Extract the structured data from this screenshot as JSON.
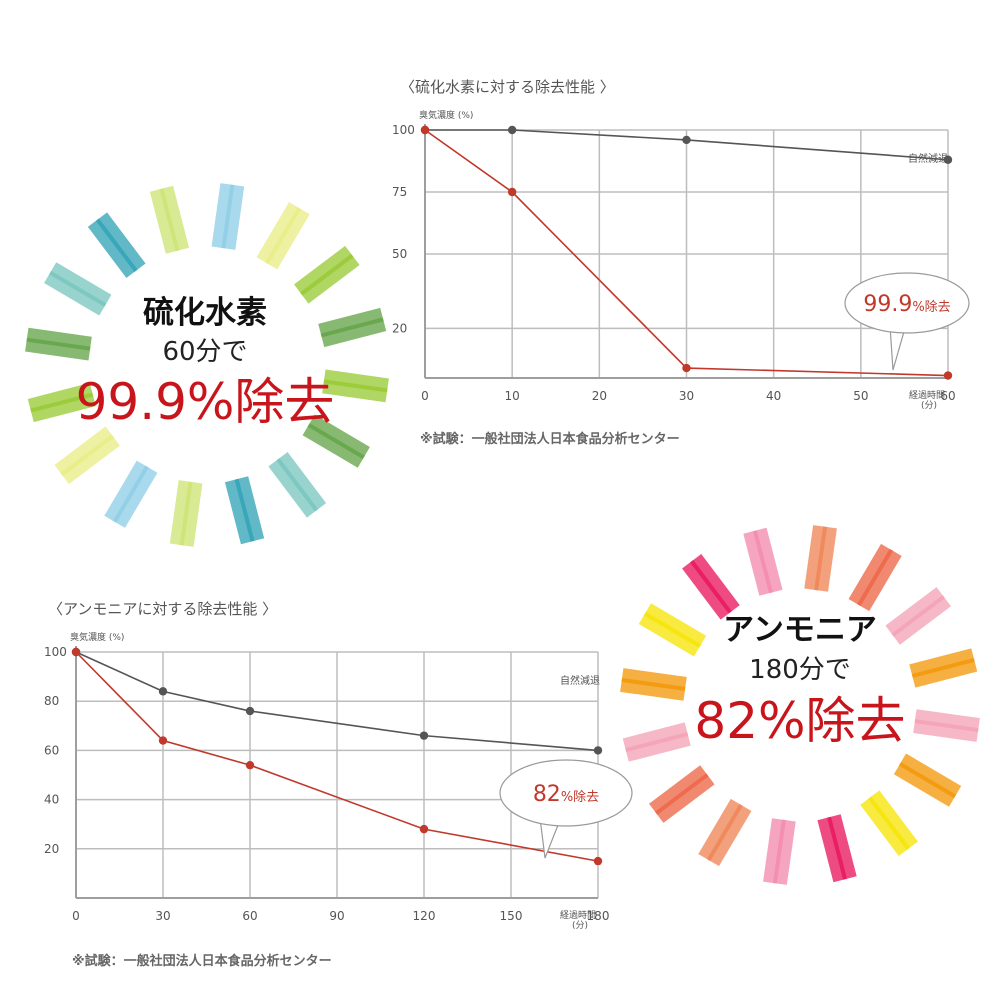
{
  "chart_data": [
    {
      "type": "line",
      "title": "〈硫化水素に対する除去性能 〉",
      "ylabel": "臭気濃度 (%)",
      "xlabel": "経過時間",
      "xlabel_unit": "(分)",
      "x_ticks": [
        0,
        10,
        20,
        30,
        40,
        50,
        60
      ],
      "y_ticks": [
        100,
        75,
        50,
        20
      ],
      "xlim": [
        0,
        60
      ],
      "ylim": [
        0,
        100
      ],
      "grid": true,
      "series": [
        {
          "name": "自然減退",
          "color": "#555555",
          "x": [
            0,
            10,
            30,
            60
          ],
          "y": [
            100,
            100,
            96,
            88
          ]
        },
        {
          "name": "",
          "color": "#c0392b",
          "x": [
            0,
            10,
            30,
            60
          ],
          "y": [
            100,
            75,
            4,
            1
          ]
        }
      ],
      "callout": {
        "value": "99.9",
        "unit": "%除去"
      },
      "source": "※試験：一般社団法人日本食品分析センター"
    },
    {
      "type": "line",
      "title": "〈アンモニアに対する除去性能 〉",
      "ylabel": "臭気濃度 (%)",
      "xlabel": "経過時間",
      "xlabel_unit": "(分)",
      "x_ticks": [
        0,
        30,
        60,
        90,
        120,
        150,
        180
      ],
      "y_ticks": [
        100,
        80,
        60,
        40,
        20
      ],
      "xlim": [
        0,
        180
      ],
      "ylim": [
        0,
        100
      ],
      "grid": true,
      "series": [
        {
          "name": "自然減退",
          "color": "#555555",
          "x": [
            0,
            30,
            60,
            120,
            180
          ],
          "y": [
            100,
            84,
            76,
            66,
            60
          ]
        },
        {
          "name": "",
          "color": "#c0392b",
          "x": [
            0,
            30,
            60,
            120,
            180
          ],
          "y": [
            100,
            64,
            54,
            28,
            15
          ]
        }
      ],
      "callout": {
        "value": "82",
        "unit": "%除去"
      },
      "source": "※試験：一般社団法人日本食品分析センター"
    }
  ],
  "badges": [
    {
      "name": "硫化水素",
      "time": "60分で",
      "result": "99.9%除去",
      "colors": [
        "#9ccc3c",
        "#6aa84f",
        "#7ec8c2",
        "#3aa6b9",
        "#cfe57a",
        "#93d0e8",
        "#e9ee8a"
      ]
    },
    {
      "name": "アンモニア",
      "time": "180分で",
      "result": "82%除去",
      "colors": [
        "#f4a6b8",
        "#f39c12",
        "#f6e50e",
        "#e91e63",
        "#f48fb1",
        "#f08a5d",
        "#ee6b4d"
      ]
    }
  ]
}
